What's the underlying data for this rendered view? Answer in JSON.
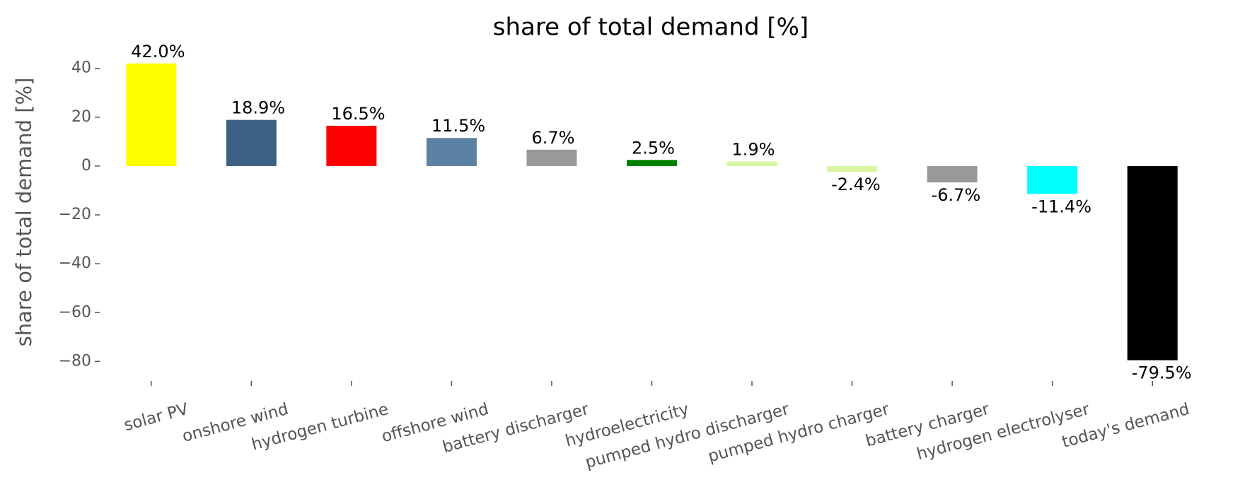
{
  "chart_data": {
    "type": "bar",
    "title": "share of total demand [%]",
    "ylabel": "share of total demand [%]",
    "categories": [
      "solar PV",
      "onshore wind",
      "hydrogen turbine",
      "offshore wind",
      "battery discharger",
      "hydroelectricity",
      "pumped hydro discharger",
      "pumped hydro charger",
      "battery charger",
      "hydrogen electrolyser",
      "today's demand"
    ],
    "values": [
      42.0,
      18.9,
      16.5,
      11.5,
      6.7,
      2.5,
      1.9,
      -2.4,
      -6.7,
      -11.4,
      -79.5
    ],
    "value_labels": [
      "42.0%",
      "18.9%",
      "16.5%",
      "11.5%",
      "6.7%",
      "2.5%",
      "1.9%",
      "-2.4%",
      "-6.7%",
      "-11.4%",
      "-79.5%"
    ],
    "colors": [
      "#ffff00",
      "#3b6182",
      "#ff0000",
      "#5b82a3",
      "#999999",
      "#008000",
      "#d8f5a2",
      "#d8f5a2",
      "#999999",
      "#00ffff",
      "#000000"
    ],
    "ylim": [
      -88,
      46
    ],
    "yticks": [
      {
        "value": -80,
        "label": "−80"
      },
      {
        "value": -60,
        "label": "−60"
      },
      {
        "value": -40,
        "label": "−40"
      },
      {
        "value": -20,
        "label": "−20"
      },
      0,
      20,
      40
    ],
    "grid": false
  }
}
